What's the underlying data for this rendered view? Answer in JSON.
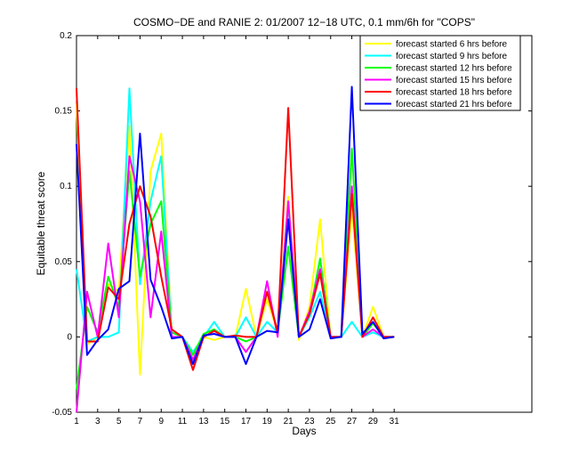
{
  "chart_data": {
    "type": "line",
    "title": "COSMO−DE and RANIE 2: 01/2007 12−18 UTC, 0.1 mm/6h for \"COPS\"",
    "xlabel": "Days",
    "ylabel": "Equitable threat score",
    "xlim": [
      1,
      44
    ],
    "ylim": [
      -0.05,
      0.2
    ],
    "xticks": [
      1,
      3,
      5,
      7,
      9,
      11,
      13,
      15,
      17,
      19,
      21,
      23,
      25,
      27,
      29,
      31
    ],
    "yticks": [
      -0.05,
      0,
      0.05,
      0.1,
      0.15,
      0.2
    ],
    "ytick_labels": [
      "-0.05",
      "0",
      "0.05",
      "0.1",
      "0.15",
      "0.2"
    ],
    "legend_position": "top-right",
    "grid": false,
    "x": [
      1,
      2,
      3,
      4,
      5,
      6,
      7,
      8,
      9,
      10,
      11,
      12,
      13,
      14,
      15,
      16,
      17,
      18,
      19,
      20,
      21,
      22,
      23,
      24,
      25,
      26,
      27,
      28,
      29,
      30,
      31
    ],
    "series": [
      {
        "name": "forecast started  6 hrs before",
        "color": "#ffff00",
        "values": [
          0.155,
          -0.005,
          0.0,
          0.035,
          0.03,
          0.14,
          -0.025,
          0.11,
          0.135,
          0.0,
          0.0,
          -0.015,
          0.0,
          -0.002,
          0.0,
          0.0,
          0.032,
          0.0,
          0.025,
          0.003,
          0.093,
          -0.002,
          0.02,
          0.078,
          -0.001,
          0.0,
          0.085,
          0.0,
          0.02,
          0.0,
          0.0
        ]
      },
      {
        "name": "forecast started  9 hrs before",
        "color": "#00ffff",
        "values": [
          0.045,
          -0.003,
          0.0,
          0.0,
          0.003,
          0.165,
          0.035,
          0.09,
          0.12,
          0.0,
          0.0,
          -0.01,
          0.0,
          0.01,
          0.0,
          0.0,
          0.013,
          0.0,
          0.01,
          0.003,
          0.088,
          0.0,
          0.013,
          0.03,
          0.0,
          0.0,
          0.01,
          0.0,
          0.003,
          0.0,
          0.0
        ]
      },
      {
        "name": "forecast started 12 hrs before",
        "color": "#00ff00",
        "values": [
          -0.035,
          0.02,
          0.003,
          0.04,
          0.02,
          0.11,
          0.04,
          0.075,
          0.09,
          0.003,
          0.0,
          -0.012,
          0.002,
          0.005,
          0.0,
          0.0,
          -0.003,
          0.0,
          0.03,
          0.003,
          0.06,
          0.0,
          0.015,
          0.052,
          0.0,
          0.0,
          0.125,
          0.0,
          0.009,
          0.0,
          0.0
        ]
      },
      {
        "name": "forecast started 15 hrs before",
        "color": "#ff00ff",
        "values": [
          -0.05,
          0.03,
          0.0,
          0.062,
          0.013,
          0.12,
          0.09,
          0.013,
          0.07,
          0.0,
          0.0,
          -0.015,
          0.0,
          0.004,
          0.0,
          0.0,
          -0.01,
          0.0,
          0.037,
          0.0,
          0.09,
          0.0,
          0.017,
          0.045,
          0.0,
          0.0,
          0.1,
          0.0,
          0.005,
          0.0,
          0.0
        ]
      },
      {
        "name": "forecast started 18 hrs before",
        "color": "#ff0000",
        "values": [
          0.165,
          -0.003,
          -0.003,
          0.033,
          0.025,
          0.075,
          0.1,
          0.08,
          0.04,
          0.005,
          0.0,
          -0.022,
          0.0,
          0.004,
          0.0,
          0.001,
          0.0,
          0.0,
          0.03,
          0.003,
          0.152,
          0.0,
          0.015,
          0.042,
          0.0,
          0.0,
          0.095,
          0.0,
          0.013,
          0.0,
          0.0
        ]
      },
      {
        "name": "forecast started 21 hrs before",
        "color": "#0000ff",
        "values": [
          0.128,
          -0.012,
          -0.002,
          0.005,
          0.032,
          0.037,
          0.135,
          0.038,
          0.02,
          -0.001,
          0.0,
          -0.018,
          0.001,
          0.002,
          0.0,
          0.0,
          -0.018,
          0.0,
          0.004,
          0.003,
          0.078,
          0.0,
          0.005,
          0.025,
          -0.001,
          0.0,
          0.166,
          0.002,
          0.01,
          -0.001,
          0.0
        ]
      }
    ]
  }
}
